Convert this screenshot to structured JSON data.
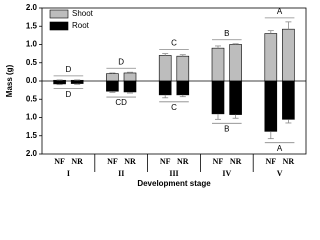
{
  "chart_data": {
    "type": "bar",
    "y_label": "Mass (g)",
    "x_label": "Development stage",
    "categories": [
      "NF",
      "NR",
      "NF",
      "NR",
      "NF",
      "NR",
      "NF",
      "NR",
      "NF",
      "NR"
    ],
    "groups": [
      "I",
      "II",
      "III",
      "IV",
      "V"
    ],
    "series": [
      {
        "name": "Shoot",
        "color": "#bdbdbd",
        "values": [
          0.02,
          0.02,
          0.2,
          0.22,
          0.7,
          0.68,
          0.9,
          1.0,
          1.3,
          1.42
        ],
        "errors": [
          0.01,
          0.01,
          0.02,
          0.02,
          0.05,
          0.04,
          0.06,
          0.02,
          0.08,
          0.2
        ],
        "letters": [
          "D",
          "D",
          "C",
          "B",
          "A"
        ]
      },
      {
        "name": "Root",
        "color": "#000000",
        "values": [
          -0.08,
          -0.07,
          -0.28,
          -0.3,
          -0.38,
          -0.38,
          -0.9,
          -0.92,
          -1.38,
          -1.05
        ],
        "errors": [
          0.02,
          0.02,
          0.03,
          0.03,
          0.08,
          0.05,
          0.15,
          0.1,
          0.2,
          0.1
        ],
        "letters": [
          "D",
          "CD",
          "C",
          "B",
          "A"
        ]
      }
    ],
    "ylim": [
      -2,
      2
    ],
    "yticks": [
      {
        "value": 2,
        "label": "2.0"
      },
      {
        "value": 1.5,
        "label": "1.5"
      },
      {
        "value": 1,
        "label": "1.0"
      },
      {
        "value": 0.5,
        "label": "0.5"
      },
      {
        "value": 0,
        "label": "0.0"
      },
      {
        "value": -0.5,
        "label": "0.5"
      },
      {
        "value": -1,
        "label": "1.0"
      },
      {
        "value": -1.5,
        "label": "1.5"
      },
      {
        "value": -2,
        "label": "2.0"
      }
    ],
    "legend": "upper left"
  }
}
